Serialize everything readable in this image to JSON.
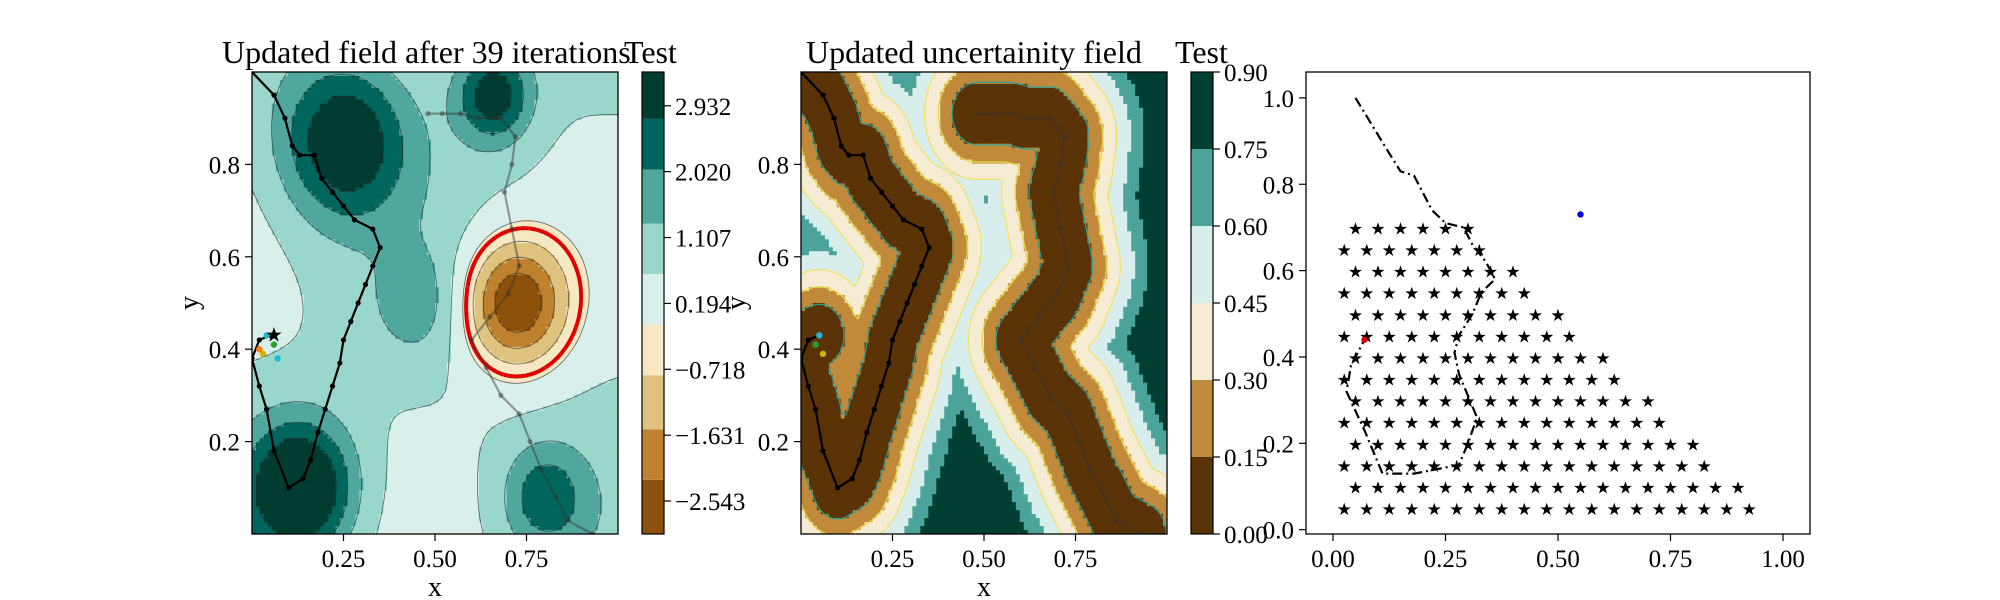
{
  "colors": {
    "brbg": [
      "#543005",
      "#8c510a",
      "#bf812d",
      "#dfc27d",
      "#f6e8c3",
      "#d8efec",
      "#99d6cb",
      "#50a79d",
      "#01665e",
      "#003c30"
    ],
    "uncert": [
      "#5a3306",
      "#c08a3a",
      "#f6ecd3",
      "#d8eeec",
      "#4ba39a",
      "#013f33"
    ],
    "front_line": "#e00000",
    "path_line": "#000000",
    "stars": "#9b59b6",
    "current_point": "#0000ee",
    "start_marker": "#d40000"
  },
  "chart_data": [
    {
      "type": "heatmap",
      "title": "Updated field after 39 iterations",
      "colorbar_title": "Test",
      "xlabel": "x",
      "ylabel": "y",
      "xlim": [
        0.0,
        1.0
      ],
      "ylim": [
        0.0,
        1.0
      ],
      "xticks": [
        "0.25",
        "0.50",
        "0.75"
      ],
      "xtick_values": [
        0.25,
        0.5,
        0.75
      ],
      "yticks": [
        "0.2",
        "0.4",
        "0.6",
        "0.8"
      ],
      "ytick_values": [
        0.2,
        0.4,
        0.6,
        0.8
      ],
      "colorbar_ticks": [
        "−2.543",
        "−1.631",
        "−0.718",
        "0.194",
        "1.107",
        "2.020",
        "2.932"
      ],
      "colorbar_tick_values": [
        -2.543,
        -1.631,
        -0.718,
        0.194,
        1.107,
        2.02,
        2.932
      ],
      "colorbar_range": [
        -3.0,
        3.4
      ],
      "features": [
        {
          "x": 0.25,
          "y": 0.85,
          "amp": 2.6,
          "s": 0.12
        },
        {
          "x": 0.13,
          "y": 0.1,
          "amp": 3.2,
          "s": 0.1
        },
        {
          "x": 0.72,
          "y": 0.5,
          "amp": -3.2,
          "s": 0.1
        },
        {
          "x": 0.66,
          "y": 0.95,
          "amp": 2.4,
          "s": 0.07
        },
        {
          "x": 0.8,
          "y": 0.08,
          "amp": 1.6,
          "s": 0.08
        },
        {
          "x": 0.45,
          "y": 0.5,
          "amp": 0.8,
          "s": 0.08
        }
      ],
      "base": 0.9,
      "explored_path": [
        [
          0.0,
          1.0
        ],
        [
          0.06,
          0.95
        ],
        [
          0.09,
          0.9
        ],
        [
          0.11,
          0.84
        ],
        [
          0.13,
          0.82
        ],
        [
          0.17,
          0.82
        ],
        [
          0.19,
          0.77
        ],
        [
          0.22,
          0.74
        ],
        [
          0.25,
          0.71
        ],
        [
          0.28,
          0.68
        ],
        [
          0.33,
          0.66
        ],
        [
          0.35,
          0.62
        ],
        [
          0.33,
          0.58
        ],
        [
          0.31,
          0.54
        ],
        [
          0.29,
          0.5
        ],
        [
          0.27,
          0.46
        ],
        [
          0.25,
          0.42
        ],
        [
          0.24,
          0.37
        ],
        [
          0.22,
          0.32
        ],
        [
          0.2,
          0.27
        ],
        [
          0.18,
          0.22
        ],
        [
          0.16,
          0.16
        ],
        [
          0.14,
          0.12
        ],
        [
          0.1,
          0.1
        ],
        [
          0.06,
          0.18
        ],
        [
          0.04,
          0.27
        ],
        [
          0.02,
          0.32
        ],
        [
          0.0,
          0.38
        ],
        [
          0.02,
          0.42
        ],
        [
          0.05,
          0.43
        ]
      ],
      "current_path": [
        [
          0.48,
          0.91
        ],
        [
          0.52,
          0.91
        ],
        [
          0.57,
          0.91
        ],
        [
          0.62,
          0.9
        ],
        [
          0.68,
          0.9
        ],
        [
          0.72,
          0.86
        ],
        [
          0.71,
          0.8
        ],
        [
          0.69,
          0.74
        ],
        [
          0.71,
          0.66
        ],
        [
          0.73,
          0.58
        ],
        [
          0.7,
          0.52
        ],
        [
          0.65,
          0.47
        ],
        [
          0.6,
          0.42
        ],
        [
          0.64,
          0.36
        ],
        [
          0.68,
          0.3
        ],
        [
          0.73,
          0.26
        ],
        [
          0.76,
          0.2
        ],
        [
          0.79,
          0.14
        ],
        [
          0.83,
          0.08
        ],
        [
          0.86,
          0.03
        ],
        [
          0.93,
          0.0
        ]
      ],
      "start_points": [
        [
          0.04,
          0.43
        ],
        [
          0.06,
          0.41
        ],
        [
          0.03,
          0.39
        ],
        [
          0.07,
          0.38
        ],
        [
          0.02,
          0.4
        ]
      ]
    },
    {
      "type": "heatmap",
      "title": "Updated uncertainity field",
      "colorbar_title": "Test",
      "xlabel": "x",
      "ylabel": "y",
      "xlim": [
        0.0,
        1.0
      ],
      "ylim": [
        0.0,
        1.0
      ],
      "xticks": [
        "0.25",
        "0.50",
        "0.75"
      ],
      "xtick_values": [
        0.25,
        0.5,
        0.75
      ],
      "yticks": [
        "0.2",
        "0.4",
        "0.6",
        "0.8"
      ],
      "ytick_values": [
        0.2,
        0.4,
        0.6,
        0.8
      ],
      "colorbar_ticks": [
        "0.00",
        "0.15",
        "0.30",
        "0.45",
        "0.60",
        "0.75",
        "0.90"
      ],
      "colorbar_tick_values": [
        0.0,
        0.15,
        0.3,
        0.45,
        0.6,
        0.75,
        0.9
      ],
      "colorbar_range": [
        0.0,
        0.9
      ],
      "sample_points": [
        [
          0.05,
          0.43
        ],
        [
          0.04,
          0.41
        ],
        [
          0.06,
          0.39
        ]
      ]
    },
    {
      "type": "scatter",
      "title": "",
      "xlabel": "",
      "ylabel": "",
      "xlim": [
        -0.06,
        1.06
      ],
      "ylim": [
        -0.01,
        1.06
      ],
      "xticks": [
        "0.00",
        "0.25",
        "0.50",
        "0.75",
        "1.00"
      ],
      "xtick_values": [
        0.0,
        0.25,
        0.5,
        0.75,
        1.0
      ],
      "yticks": [
        "0.0",
        "0.2",
        "0.4",
        "0.6",
        "0.8",
        "1.0"
      ],
      "yticks_values": [
        0.0,
        0.2,
        0.4,
        0.6,
        0.8,
        1.0
      ],
      "trajectory": [
        [
          0.05,
          1.0
        ],
        [
          0.12,
          0.88
        ],
        [
          0.15,
          0.83
        ],
        [
          0.18,
          0.82
        ],
        [
          0.22,
          0.74
        ],
        [
          0.25,
          0.71
        ],
        [
          0.29,
          0.7
        ],
        [
          0.31,
          0.66
        ],
        [
          0.34,
          0.62
        ],
        [
          0.36,
          0.58
        ],
        [
          0.33,
          0.55
        ],
        [
          0.31,
          0.5
        ],
        [
          0.28,
          0.45
        ],
        [
          0.27,
          0.41
        ],
        [
          0.28,
          0.36
        ],
        [
          0.3,
          0.31
        ],
        [
          0.32,
          0.26
        ],
        [
          0.3,
          0.2
        ],
        [
          0.28,
          0.15
        ],
        [
          0.18,
          0.13
        ],
        [
          0.11,
          0.13
        ],
        [
          0.07,
          0.23
        ],
        [
          0.03,
          0.32
        ],
        [
          0.04,
          0.38
        ],
        [
          0.07,
          0.44
        ]
      ],
      "current_point": [
        0.55,
        0.73
      ],
      "start_point": [
        0.07,
        0.44
      ],
      "candidate_grid": {
        "y_start": 0.05,
        "y_step": 0.05,
        "x_step": 0.05,
        "rows": 14,
        "slope": -1
      }
    }
  ]
}
